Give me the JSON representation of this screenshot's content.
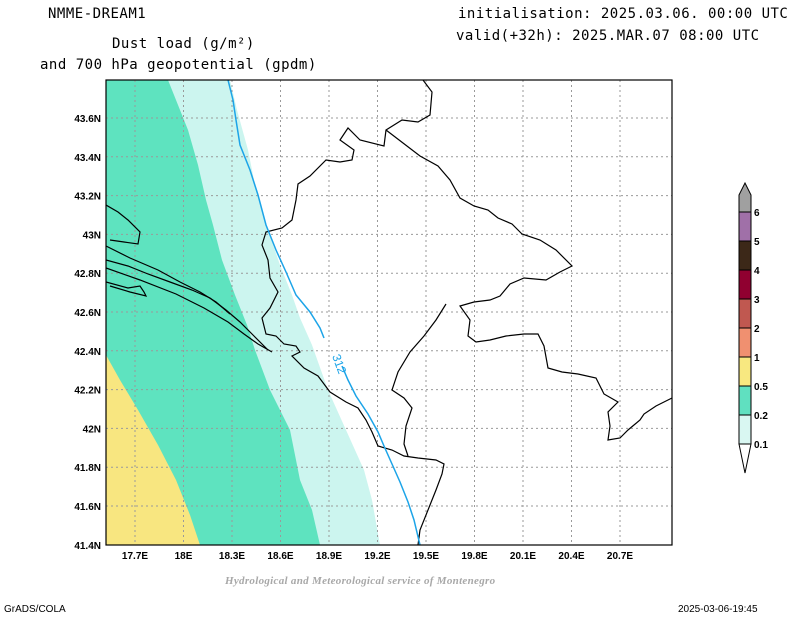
{
  "header": {
    "model": "NMME-DREAM1",
    "title_line1": "Dust load (g/m²)",
    "title_line2": "and 700 hPa geopotential (gpdm)",
    "init": "initialisation: 2025.03.06. 00:00 UTC",
    "valid": "valid(+32h): 2025.MAR.07 08:00 UTC"
  },
  "map": {
    "lat_ticks": [
      "43.6N",
      "43.4N",
      "43.2N",
      "43N",
      "42.8N",
      "42.6N",
      "42.4N",
      "42.2N",
      "42N",
      "41.8N",
      "41.6N",
      "41.4N"
    ],
    "lon_ticks": [
      "17.7E",
      "18E",
      "18.3E",
      "18.6E",
      "18.9E",
      "19.2E",
      "19.5E",
      "19.8E",
      "20.1E",
      "20.4E",
      "20.7E"
    ],
    "contour_label": "312"
  },
  "legend": {
    "levels": [
      {
        "label": "0.1",
        "color": "#d9f7f2"
      },
      {
        "label": "0.2",
        "color": "#60e0c0"
      },
      {
        "label": "0.5",
        "color": "#f8e880"
      },
      {
        "label": "1",
        "color": "#f09070"
      },
      {
        "label": "2",
        "color": "#c05850"
      },
      {
        "label": "3",
        "color": "#900030"
      },
      {
        "label": "4",
        "color": "#3c2818"
      },
      {
        "label": "5",
        "color": "#a070a8"
      },
      {
        "label": "6",
        "color": "#a0a0a0"
      }
    ]
  },
  "colors": {
    "shade_01": "#ccf5ef",
    "shade_02": "#5ee3bf",
    "shade_05": "#f8e680",
    "contour": "#1ca4e8"
  },
  "footer": {
    "credit": "Hydrological and Meteorological service of Montenegro",
    "left": "GrADS/COLA",
    "right": "2025-03-06-19:45"
  }
}
